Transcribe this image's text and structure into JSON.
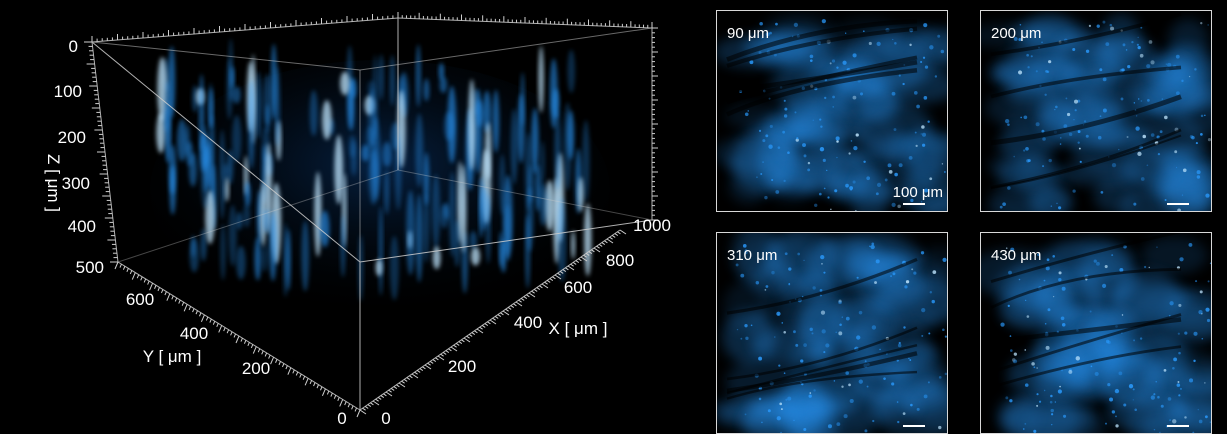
{
  "volume": {
    "z_ticks": [
      "0",
      "100",
      "200",
      "300",
      "400",
      "500"
    ],
    "z_label": "Z [ μm ]",
    "y_ticks": [
      "600",
      "400",
      "200",
      "0"
    ],
    "y_label": "Y [ μm ]",
    "x_ticks": [
      "0",
      "200",
      "400",
      "600",
      "800",
      "1000"
    ],
    "x_label": "X [ μm ]"
  },
  "panels": [
    {
      "depth": "90 μm",
      "scale_label": "100 μm"
    },
    {
      "depth": "200 μm"
    },
    {
      "depth": "310 μm"
    },
    {
      "depth": "430 μm"
    }
  ],
  "colors": {
    "signal": "#2a9bff",
    "bright": "#bfe6ff",
    "frame": "#bdbdbd"
  }
}
